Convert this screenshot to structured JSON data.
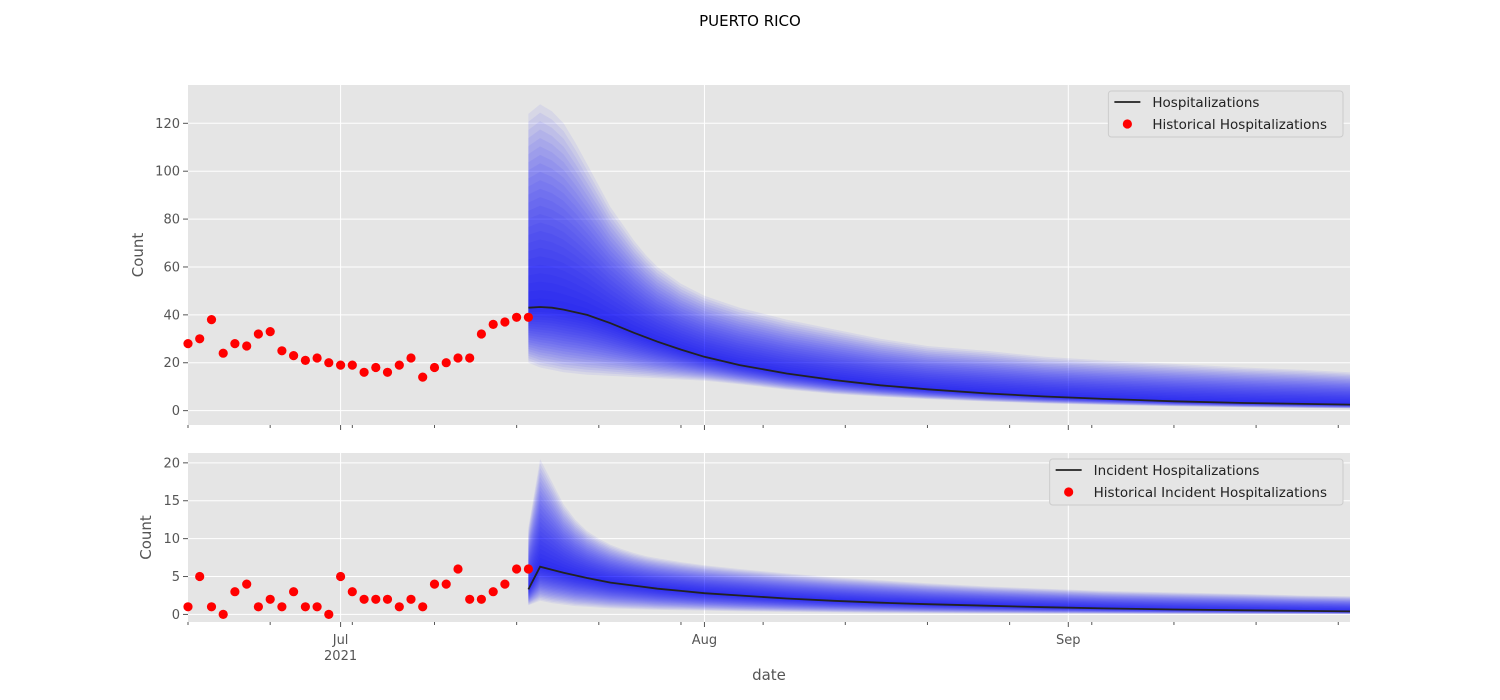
{
  "figure": {
    "title": "PUERTO RICO",
    "xlabel": "date"
  },
  "x_axis": {
    "type": "date",
    "range": [
      "2021-06-18",
      "2021-09-25"
    ],
    "major_ticks": [
      {
        "date": "2021-07-01",
        "label": "Jul",
        "label2": "2021"
      },
      {
        "date": "2021-08-01",
        "label": "Aug",
        "label2": ""
      },
      {
        "date": "2021-09-01",
        "label": "Sep",
        "label2": ""
      }
    ],
    "minor_tick_interval_days": 7
  },
  "colors": {
    "background": "#e5e5e5",
    "grid": "#ffffff",
    "median_line": "#222222",
    "observed_points": "#ff0000",
    "fan": "#0000ff"
  },
  "chart_data": [
    {
      "type": "line",
      "title": "",
      "xlabel": "",
      "ylabel": "Count",
      "ylim": [
        -6,
        136
      ],
      "yticks": [
        0,
        20,
        40,
        60,
        80,
        100,
        120
      ],
      "grid": true,
      "legend_position": "top-right",
      "series": [
        {
          "name": "Historical Hospitalizations",
          "kind": "scatter",
          "x": [
            "2021-06-18",
            "2021-06-19",
            "2021-06-20",
            "2021-06-21",
            "2021-06-22",
            "2021-06-23",
            "2021-06-24",
            "2021-06-25",
            "2021-06-26",
            "2021-06-27",
            "2021-06-28",
            "2021-06-29",
            "2021-06-30",
            "2021-07-01",
            "2021-07-02",
            "2021-07-03",
            "2021-07-04",
            "2021-07-05",
            "2021-07-06",
            "2021-07-07",
            "2021-07-08",
            "2021-07-09",
            "2021-07-10",
            "2021-07-11",
            "2021-07-12",
            "2021-07-13",
            "2021-07-14",
            "2021-07-15",
            "2021-07-16",
            "2021-07-17"
          ],
          "y": [
            28,
            30,
            38,
            24,
            28,
            27,
            32,
            33,
            25,
            23,
            21,
            22,
            20,
            19,
            19,
            16,
            18,
            16,
            19,
            22,
            14,
            18,
            20,
            22,
            22,
            32,
            36,
            37,
            39,
            39
          ]
        },
        {
          "name": "Hospitalizations",
          "kind": "line",
          "x": [
            "2021-07-17",
            "2021-07-18",
            "2021-07-19",
            "2021-07-20",
            "2021-07-22",
            "2021-07-24",
            "2021-07-26",
            "2021-07-28",
            "2021-07-30",
            "2021-08-01",
            "2021-08-04",
            "2021-08-08",
            "2021-08-12",
            "2021-08-16",
            "2021-08-20",
            "2021-08-25",
            "2021-08-30",
            "2021-09-04",
            "2021-09-10",
            "2021-09-16",
            "2021-09-21",
            "2021-09-25"
          ],
          "y": [
            43,
            43.3,
            43,
            42.2,
            40,
            36.5,
            32.5,
            28.8,
            25.5,
            22.5,
            19,
            15.5,
            12.8,
            10.6,
            8.9,
            7.2,
            5.9,
            4.9,
            3.9,
            3.2,
            2.8,
            2.5
          ]
        }
      ],
      "fan": {
        "x": [
          "2021-07-17",
          "2021-07-18",
          "2021-07-19",
          "2021-07-20",
          "2021-07-21",
          "2021-07-22",
          "2021-07-23",
          "2021-07-24",
          "2021-07-25",
          "2021-07-26",
          "2021-07-27",
          "2021-07-28",
          "2021-07-30",
          "2021-08-01",
          "2021-08-04",
          "2021-08-08",
          "2021-08-12",
          "2021-08-16",
          "2021-08-20",
          "2021-08-25",
          "2021-08-30",
          "2021-09-04",
          "2021-09-10",
          "2021-09-16",
          "2021-09-21",
          "2021-09-25"
        ],
        "median": [
          43,
          43.3,
          43,
          42.2,
          41.2,
          40,
          38.3,
          36.5,
          34.5,
          32.5,
          30.6,
          28.8,
          25.5,
          22.5,
          19,
          15.5,
          12.8,
          10.6,
          8.9,
          7.2,
          5.9,
          4.9,
          3.9,
          3.2,
          2.8,
          2.5
        ],
        "upper": [
          124,
          128,
          125,
          120,
          112,
          103,
          94,
          85,
          78,
          71,
          65,
          60,
          53,
          48,
          43,
          38,
          34,
          30,
          27,
          25,
          22.5,
          21,
          19.5,
          18,
          17,
          16
        ],
        "lower": [
          20,
          18,
          17,
          16,
          15.5,
          15,
          14.8,
          14.5,
          14.3,
          14,
          13.8,
          13.5,
          13,
          12.5,
          11,
          8.8,
          7,
          5.8,
          4.8,
          3.8,
          3,
          2.4,
          1.8,
          1.4,
          1.1,
          0.9
        ],
        "bands": 24
      }
    },
    {
      "type": "line",
      "title": "",
      "xlabel": "date",
      "ylabel": "Count",
      "ylim": [
        -1,
        21.3
      ],
      "yticks": [
        0,
        5,
        10,
        15,
        20
      ],
      "grid": true,
      "legend_position": "top-right",
      "series": [
        {
          "name": "Historical Incident Hospitalizations",
          "kind": "scatter",
          "x": [
            "2021-06-18",
            "2021-06-19",
            "2021-06-20",
            "2021-06-21",
            "2021-06-22",
            "2021-06-23",
            "2021-06-24",
            "2021-06-25",
            "2021-06-26",
            "2021-06-27",
            "2021-06-28",
            "2021-06-29",
            "2021-06-30",
            "2021-07-01",
            "2021-07-02",
            "2021-07-03",
            "2021-07-04",
            "2021-07-05",
            "2021-07-06",
            "2021-07-07",
            "2021-07-08",
            "2021-07-09",
            "2021-07-10",
            "2021-07-11",
            "2021-07-12",
            "2021-07-13",
            "2021-07-14",
            "2021-07-15",
            "2021-07-16",
            "2021-07-17"
          ],
          "y": [
            1,
            5,
            1,
            0,
            3,
            4,
            1,
            2,
            1,
            3,
            1,
            1,
            0,
            5,
            3,
            2,
            2,
            2,
            1,
            2,
            1,
            4,
            4,
            6,
            2,
            2,
            3,
            4,
            6,
            6
          ]
        },
        {
          "name": "Incident Hospitalizations",
          "kind": "line",
          "x": [
            "2021-07-17",
            "2021-07-18",
            "2021-07-19",
            "2021-07-20",
            "2021-07-22",
            "2021-07-24",
            "2021-07-26",
            "2021-07-28",
            "2021-07-30",
            "2021-08-01",
            "2021-08-04",
            "2021-08-08",
            "2021-08-12",
            "2021-08-16",
            "2021-08-20",
            "2021-08-25",
            "2021-08-30",
            "2021-09-04",
            "2021-09-10",
            "2021-09-16",
            "2021-09-21",
            "2021-09-25"
          ],
          "y": [
            3.3,
            6.3,
            5.9,
            5.5,
            4.8,
            4.2,
            3.8,
            3.4,
            3.1,
            2.8,
            2.5,
            2.1,
            1.8,
            1.55,
            1.35,
            1.15,
            0.95,
            0.8,
            0.65,
            0.55,
            0.47,
            0.4
          ]
        }
      ],
      "fan": {
        "x": [
          "2021-07-17",
          "2021-07-18",
          "2021-07-19",
          "2021-07-20",
          "2021-07-21",
          "2021-07-22",
          "2021-07-23",
          "2021-07-24",
          "2021-07-25",
          "2021-07-26",
          "2021-07-27",
          "2021-07-28",
          "2021-07-30",
          "2021-08-01",
          "2021-08-04",
          "2021-08-08",
          "2021-08-12",
          "2021-08-16",
          "2021-08-20",
          "2021-08-25",
          "2021-08-30",
          "2021-09-04",
          "2021-09-10",
          "2021-09-16",
          "2021-09-21",
          "2021-09-25"
        ],
        "median": [
          3.3,
          6.3,
          5.9,
          5.5,
          5.1,
          4.8,
          4.5,
          4.2,
          4,
          3.8,
          3.6,
          3.4,
          3.1,
          2.8,
          2.5,
          2.1,
          1.8,
          1.55,
          1.35,
          1.15,
          0.95,
          0.8,
          0.65,
          0.55,
          0.47,
          0.4
        ],
        "upper": [
          11.5,
          20.5,
          17.5,
          14.5,
          12.5,
          11,
          10,
          9.2,
          8.6,
          8.1,
          7.7,
          7.4,
          6.9,
          6.5,
          6,
          5.4,
          4.9,
          4.5,
          4.1,
          3.7,
          3.4,
          3.1,
          2.9,
          2.7,
          2.5,
          2.4
        ],
        "lower": [
          1.2,
          1.8,
          1.5,
          1.3,
          1.1,
          1,
          0.9,
          0.8,
          0.75,
          0.7,
          0.65,
          0.6,
          0.55,
          0.5,
          0.4,
          0.32,
          0.25,
          0.2,
          0.16,
          0.12,
          0.1,
          0.08,
          0.06,
          0.05,
          0.04,
          0.03
        ],
        "bands": 24
      }
    }
  ]
}
